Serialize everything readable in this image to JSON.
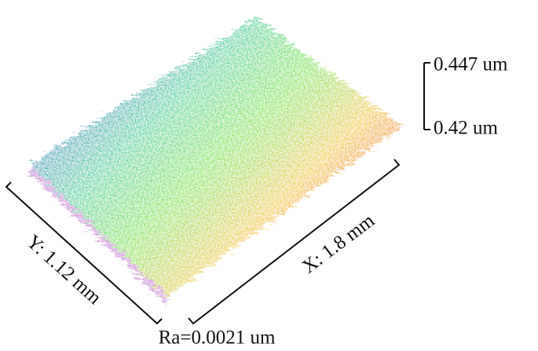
{
  "scale_bar": {
    "top": "0.447 um",
    "bottom": "0.42 um"
  },
  "axes": {
    "y": "Y: 1.12 mm",
    "x": "X: 1.8 mm"
  },
  "roughness": "Ra=0.0021 um"
}
